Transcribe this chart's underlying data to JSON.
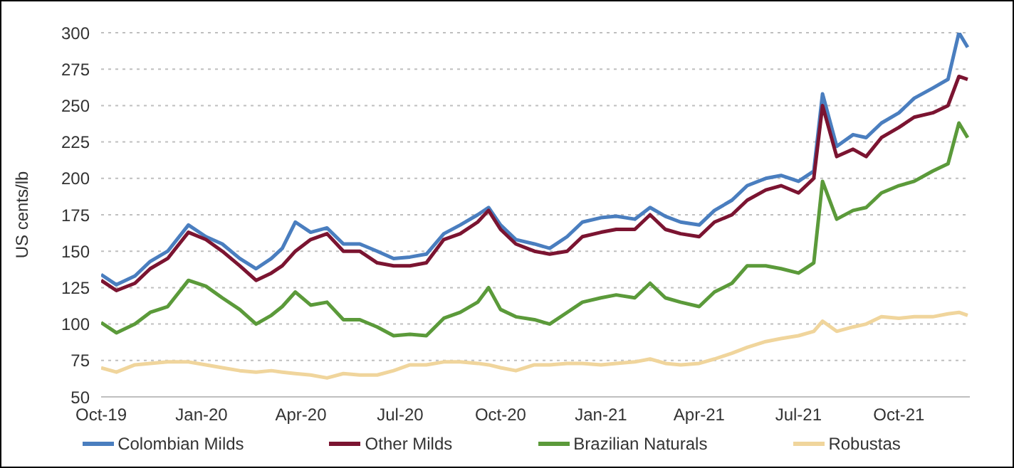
{
  "chart_data": {
    "type": "line",
    "ylabel": "US cents/lb",
    "x": [
      "2019-10-01",
      "2019-10-15",
      "2019-11-01",
      "2019-11-15",
      "2019-12-01",
      "2019-12-20",
      "2020-01-05",
      "2020-01-20",
      "2020-02-05",
      "2020-02-20",
      "2020-03-05",
      "2020-03-15",
      "2020-03-27",
      "2020-04-10",
      "2020-04-25",
      "2020-05-10",
      "2020-05-25",
      "2020-06-10",
      "2020-06-25",
      "2020-07-10",
      "2020-07-25",
      "2020-08-10",
      "2020-08-25",
      "2020-09-10",
      "2020-09-20",
      "2020-10-01",
      "2020-10-15",
      "2020-11-01",
      "2020-11-15",
      "2020-12-01",
      "2020-12-15",
      "2021-01-01",
      "2021-01-15",
      "2021-02-01",
      "2021-02-15",
      "2021-03-01",
      "2021-03-15",
      "2021-04-01",
      "2021-04-15",
      "2021-05-01",
      "2021-05-15",
      "2021-06-01",
      "2021-06-15",
      "2021-07-01",
      "2021-07-15",
      "2021-07-23",
      "2021-08-05",
      "2021-08-20",
      "2021-09-01",
      "2021-09-15",
      "2021-10-01",
      "2021-10-15",
      "2021-11-01",
      "2021-11-15",
      "2021-11-25",
      "2021-12-03"
    ],
    "series": [
      {
        "name": "Colombian Milds",
        "color": "#4a7ebf",
        "values": [
          134,
          127,
          133,
          143,
          150,
          168,
          160,
          155,
          145,
          138,
          145,
          152,
          170,
          163,
          166,
          155,
          155,
          150,
          145,
          146,
          148,
          162,
          168,
          175,
          180,
          168,
          158,
          155,
          152,
          160,
          170,
          173,
          174,
          172,
          180,
          174,
          170,
          168,
          178,
          185,
          195,
          200,
          202,
          198,
          205,
          258,
          222,
          230,
          228,
          238,
          245,
          255,
          262,
          268,
          300,
          290
        ]
      },
      {
        "name": "Other Milds",
        "color": "#7b1431",
        "values": [
          130,
          123,
          128,
          138,
          145,
          163,
          158,
          150,
          140,
          130,
          135,
          140,
          150,
          158,
          162,
          150,
          150,
          142,
          140,
          140,
          142,
          158,
          162,
          170,
          178,
          165,
          155,
          150,
          148,
          150,
          160,
          163,
          165,
          165,
          175,
          165,
          162,
          160,
          170,
          175,
          185,
          192,
          195,
          190,
          200,
          250,
          215,
          220,
          215,
          228,
          235,
          242,
          245,
          250,
          270,
          268
        ]
      },
      {
        "name": "Brazilian Naturals",
        "color": "#5b9a3a",
        "values": [
          101,
          94,
          100,
          108,
          112,
          130,
          126,
          118,
          110,
          100,
          106,
          112,
          122,
          113,
          115,
          103,
          103,
          98,
          92,
          93,
          92,
          104,
          108,
          115,
          125,
          110,
          105,
          103,
          100,
          108,
          115,
          118,
          120,
          118,
          128,
          118,
          115,
          112,
          122,
          128,
          140,
          140,
          138,
          135,
          142,
          198,
          172,
          178,
          180,
          190,
          195,
          198,
          205,
          210,
          238,
          228
        ]
      },
      {
        "name": "Robustas",
        "color": "#f0d59c",
        "values": [
          70,
          67,
          72,
          73,
          74,
          74,
          72,
          70,
          68,
          67,
          68,
          67,
          66,
          65,
          63,
          66,
          65,
          65,
          68,
          72,
          72,
          74,
          74,
          73,
          72,
          70,
          68,
          72,
          72,
          73,
          73,
          72,
          73,
          74,
          76,
          73,
          72,
          73,
          76,
          80,
          84,
          88,
          90,
          92,
          95,
          102,
          95,
          98,
          100,
          105,
          104,
          105,
          105,
          107,
          108,
          106
        ]
      }
    ],
    "xlim": [
      "2019-10-01",
      "2021-12-05"
    ],
    "xticks": [
      {
        "value": "2019-10-01",
        "label": "Oct-19"
      },
      {
        "value": "2020-01-01",
        "label": "Jan-20"
      },
      {
        "value": "2020-04-01",
        "label": "Apr-20"
      },
      {
        "value": "2020-07-01",
        "label": "Jul-20"
      },
      {
        "value": "2020-10-01",
        "label": "Oct-20"
      },
      {
        "value": "2021-01-01",
        "label": "Jan-21"
      },
      {
        "value": "2021-04-01",
        "label": "Apr-21"
      },
      {
        "value": "2021-07-01",
        "label": "Jul-21"
      },
      {
        "value": "2021-10-01",
        "label": "Oct-21"
      }
    ],
    "ylim": [
      50,
      300
    ],
    "yticks": [
      50,
      75,
      100,
      125,
      150,
      175,
      200,
      225,
      250,
      275,
      300
    ],
    "grid": "y",
    "legend": "bottom",
    "marker": "none",
    "line_style": "solid"
  }
}
